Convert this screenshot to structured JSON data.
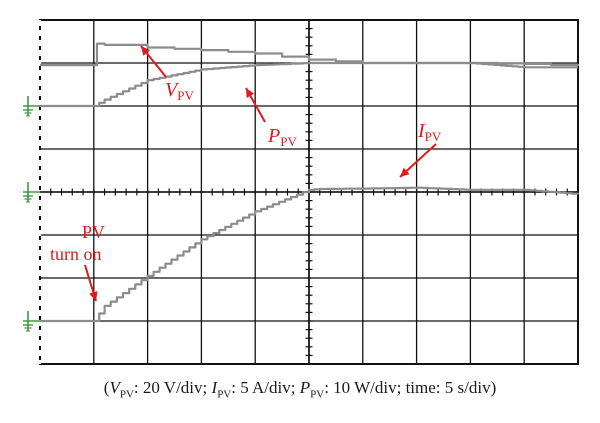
{
  "chart_data": {
    "type": "line",
    "title": "",
    "divisions": {
      "x": 10,
      "y": 8
    },
    "x_unit": "s",
    "time_per_div": 5,
    "xlim": [
      0,
      50
    ],
    "ylim": [
      0,
      8
    ],
    "series": [
      {
        "name": "V_PV",
        "scale": "20 V/div",
        "ground_level_div": 6.0,
        "x": [
          0,
          4.9,
          5.3,
          6,
          10,
          15,
          20,
          25,
          30,
          35,
          40,
          45,
          50
        ],
        "y": [
          6.95,
          6.95,
          7.45,
          7.42,
          7.36,
          7.3,
          7.22,
          7.08,
          7.0,
          7.0,
          7.0,
          6.98,
          6.93
        ]
      },
      {
        "name": "P_PV",
        "scale": "10 W/div",
        "ground_level_div": 6.0,
        "x": [
          0,
          5,
          6,
          10,
          15,
          20,
          25,
          30,
          35,
          40,
          45,
          50
        ],
        "y": [
          6.0,
          6.0,
          6.15,
          6.6,
          6.85,
          6.95,
          7.0,
          7.0,
          7.0,
          7.0,
          6.9,
          6.9
        ]
      },
      {
        "name": "I_PV",
        "scale": "5 A/div",
        "ground_level_div": 1.0,
        "x": [
          0,
          5,
          6,
          10,
          15,
          20,
          25,
          26,
          30,
          35,
          40,
          45,
          50
        ],
        "y": [
          1.0,
          1.0,
          1.35,
          2.05,
          2.9,
          3.55,
          4.05,
          4.07,
          4.08,
          4.1,
          4.05,
          4.05,
          3.95
        ]
      }
    ],
    "annotations": [
      {
        "text": "V",
        "sub": "PV",
        "for": "V_PV"
      },
      {
        "text": "P",
        "sub": "PV",
        "for": "P_PV"
      },
      {
        "text": "I",
        "sub": "PV",
        "for": "I_PV"
      },
      {
        "text": "PV turn on",
        "lines": [
          "PV",
          "turn on"
        ]
      }
    ],
    "caption": {
      "open": "(",
      "v_label": "V",
      "v_sub": "PV",
      "v_text": ": 20 V/div; ",
      "i_label": "I",
      "i_sub": "PV",
      "i_text": ": 5 A/div; ",
      "p_label": "P",
      "p_sub": "PV",
      "p_text": ": 10 W/div; time: 5 s/div)"
    }
  },
  "colors": {
    "grid": "#111111",
    "trace": "#8c8c8c",
    "annotation": "#e0191b",
    "ground_marker": "#3f9a3f"
  }
}
